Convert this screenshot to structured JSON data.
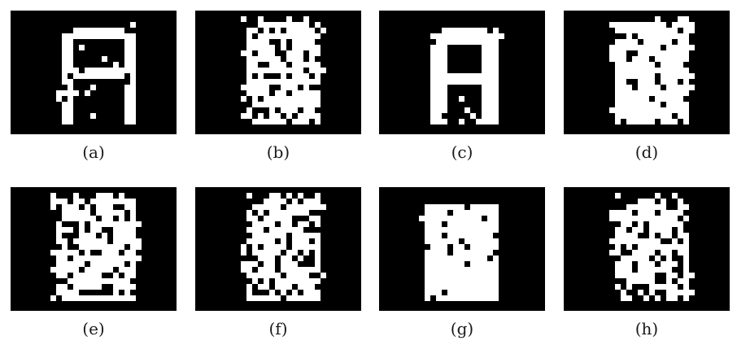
{
  "colors": {
    "background": "#000000",
    "foreground": "#ffffff",
    "page": "#ffffff"
  },
  "panels": [
    {
      "label": "(a)"
    },
    {
      "label": "(b)"
    },
    {
      "label": "(c)"
    },
    {
      "label": "(d)"
    },
    {
      "label": "(e)"
    },
    {
      "label": "(f)"
    },
    {
      "label": "(g)"
    },
    {
      "label": "(h)"
    }
  ]
}
